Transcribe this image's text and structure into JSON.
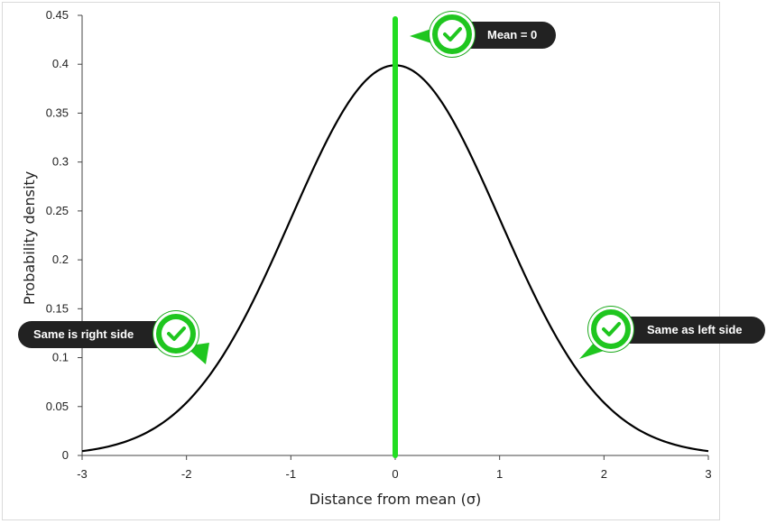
{
  "chart_data": {
    "type": "line",
    "xlabel": "Distance from mean (σ)",
    "ylabel": "Probability density",
    "xlim": [
      -3,
      3
    ],
    "ylim": [
      0,
      0.45
    ],
    "x_ticks": [
      "-3",
      "-2",
      "-1",
      "0",
      "1",
      "2",
      "3"
    ],
    "y_ticks": [
      "0",
      "0.05",
      "0.1",
      "0.15",
      "0.2",
      "0.25",
      "0.3",
      "0.35",
      "0.4",
      "0.45"
    ],
    "series": [
      {
        "x": [
          -3,
          -2.75,
          -2.5,
          -2.25,
          -2,
          -1.75,
          -1.5,
          -1.25,
          -1,
          -0.75,
          -0.5,
          -0.25,
          0,
          0.25,
          0.5,
          0.75,
          1,
          1.25,
          1.5,
          1.75,
          2,
          2.25,
          2.5,
          2.75,
          3
        ],
        "y": [
          0.0044,
          0.0091,
          0.0175,
          0.0317,
          0.054,
          0.0863,
          0.1295,
          0.1826,
          0.242,
          0.3011,
          0.3521,
          0.3867,
          0.3989,
          0.3867,
          0.3521,
          0.3011,
          0.242,
          0.1826,
          0.1295,
          0.0863,
          0.054,
          0.0317,
          0.0175,
          0.0091,
          0.0044
        ],
        "color": "#000000"
      }
    ],
    "mean_line": {
      "x": 0,
      "color": "#22dd22"
    },
    "grid": false
  },
  "annotations": {
    "mean": "Mean = 0",
    "left": "Same is right side",
    "right": "Same as left side"
  },
  "colors": {
    "accent_green": "#1fc61f",
    "callout_bg": "#222222"
  },
  "icons": [
    "check-icon"
  ]
}
